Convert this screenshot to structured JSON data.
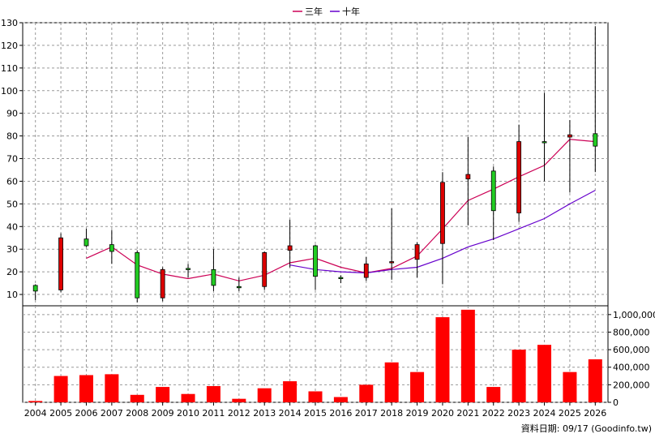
{
  "legend": [
    {
      "label": "三年",
      "color": "#cc0055"
    },
    {
      "label": "十年",
      "color": "#6600cc"
    }
  ],
  "footer": "資料日期: 09/17  (Goodinfo.tw)",
  "chart_data": [
    {
      "type": "candlestick",
      "categories": [
        "2004",
        "2005",
        "2006",
        "2007",
        "2008",
        "2009",
        "2010",
        "2011",
        "2012",
        "2013",
        "2014",
        "2015",
        "2016",
        "2017",
        "2018",
        "2019",
        "2020",
        "2021",
        "2022",
        "2023",
        "2024",
        "2025",
        "2026"
      ],
      "ylim": [
        5,
        130
      ],
      "yticks": [
        10,
        20,
        30,
        40,
        50,
        60,
        70,
        80,
        90,
        100,
        110,
        120,
        130
      ],
      "grid": true,
      "up_color": "#22cc22",
      "down_color": "#dd0000",
      "candles": [
        {
          "open": 11.5,
          "high": 14.5,
          "low": 7.5,
          "close": 14.0
        },
        {
          "open": 35.0,
          "high": 37.0,
          "low": 11.0,
          "close": 12.0
        },
        {
          "open": 31.5,
          "high": 39.0,
          "low": 31.0,
          "close": 34.5
        },
        {
          "open": 29.0,
          "high": 38.5,
          "low": 23.5,
          "close": 32.0
        },
        {
          "open": 8.5,
          "high": 29.5,
          "low": 6.5,
          "close": 28.5
        },
        {
          "open": 21.0,
          "high": 22.0,
          "low": 7.0,
          "close": 8.5
        },
        {
          "open": 21.5,
          "high": 23.5,
          "low": 17.5,
          "close": 21.5
        },
        {
          "open": 14.0,
          "high": 30.0,
          "low": 11.5,
          "close": 21.0
        },
        {
          "open": 13.5,
          "high": 17.5,
          "low": 11.5,
          "close": 13.5
        },
        {
          "open": 28.5,
          "high": 29.0,
          "low": 12.0,
          "close": 13.5
        },
        {
          "open": 31.5,
          "high": 43.0,
          "low": 22.0,
          "close": 29.5
        },
        {
          "open": 18.0,
          "high": 32.0,
          "low": 12.0,
          "close": 31.5
        },
        {
          "open": 17.5,
          "high": 18.5,
          "low": 15.0,
          "close": 17.5
        },
        {
          "open": 23.5,
          "high": 26.5,
          "low": 16.0,
          "close": 17.5
        },
        {
          "open": 24.5,
          "high": 48.0,
          "low": 16.5,
          "close": 24.0
        },
        {
          "open": 32.0,
          "high": 33.0,
          "low": 17.5,
          "close": 25.5
        },
        {
          "open": 59.5,
          "high": 64.0,
          "low": 14.5,
          "close": 32.5
        },
        {
          "open": 63.0,
          "high": 79.5,
          "low": 40.5,
          "close": 61.0
        },
        {
          "open": 47.0,
          "high": 66.5,
          "low": 34.0,
          "close": 64.5
        },
        {
          "open": 77.5,
          "high": 85.0,
          "low": 42.0,
          "close": 46.0
        },
        {
          "open": 77.5,
          "high": 99.0,
          "low": 60.0,
          "close": 77.5
        },
        {
          "open": 80.5,
          "high": 87.0,
          "low": 55.0,
          "close": 79.5
        },
        {
          "open": 75.5,
          "high": 128.5,
          "low": 64.0,
          "close": 81.0
        }
      ],
      "series": [
        {
          "name": "三年",
          "values": [
            null,
            null,
            26.0,
            31.0,
            23.0,
            19.0,
            17.0,
            19.0,
            16.0,
            18.5,
            24.0,
            26.0,
            22.0,
            19.5,
            21.5,
            27.0,
            39.0,
            51.5,
            56.5,
            62.0,
            67.0,
            78.5,
            77.5
          ]
        },
        {
          "name": "十年",
          "values": [
            null,
            null,
            null,
            null,
            null,
            null,
            null,
            null,
            null,
            null,
            23.0,
            21.0,
            20.0,
            19.5,
            21.0,
            22.0,
            26.0,
            31.0,
            34.5,
            39.0,
            43.5,
            50.0,
            56.0
          ]
        }
      ]
    },
    {
      "type": "bar",
      "categories": [
        "2004",
        "2005",
        "2006",
        "2007",
        "2008",
        "2009",
        "2010",
        "2011",
        "2012",
        "2013",
        "2014",
        "2015",
        "2016",
        "2017",
        "2018",
        "2019",
        "2020",
        "2021",
        "2022",
        "2023",
        "2024",
        "2025",
        "2026"
      ],
      "values": [
        15000,
        300000,
        310000,
        320000,
        85000,
        175000,
        95000,
        185000,
        40000,
        160000,
        240000,
        125000,
        60000,
        200000,
        455000,
        345000,
        970000,
        1055000,
        175000,
        600000,
        655000,
        345000,
        490000
      ],
      "ylim": [
        0,
        1100000
      ],
      "yticks": [
        0,
        200000,
        400000,
        600000,
        800000,
        1000000
      ],
      "ytick_labels": [
        "0",
        "200,000",
        "400,000",
        "600,000",
        "800,000",
        "1,000,000"
      ],
      "color": "#ff0000",
      "grid": true
    }
  ]
}
